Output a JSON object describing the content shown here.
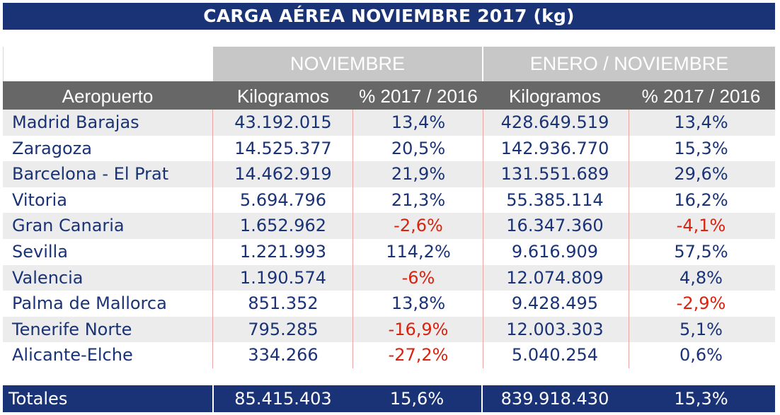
{
  "title": "CARGA AÉREA NOVIEMBRE 2017 (kg)",
  "groups": {
    "month": "NOVIEMBRE",
    "ytd": "ENERO / NOVIEMBRE"
  },
  "columns": {
    "airport": "Aeropuerto",
    "month_kg": "Kilogramos",
    "month_pct": "% 2017 / 2016",
    "ytd_kg": "Kilogramos",
    "ytd_pct": "% 2017 / 2016"
  },
  "rows": [
    {
      "airport": "Madrid Barajas",
      "month_kg": "43.192.015",
      "month_pct": "13,4%",
      "ytd_kg": "428.649.519",
      "ytd_pct": "13,4%"
    },
    {
      "airport": "Zaragoza",
      "month_kg": "14.525.377",
      "month_pct": "20,5%",
      "ytd_kg": "142.936.770",
      "ytd_pct": "15,3%"
    },
    {
      "airport": "Barcelona - El Prat",
      "month_kg": "14.462.919",
      "month_pct": "21,9%",
      "ytd_kg": "131.551.689",
      "ytd_pct": "29,6%"
    },
    {
      "airport": "Vitoria",
      "month_kg": "5.694.796",
      "month_pct": "21,3%",
      "ytd_kg": "55.385.114",
      "ytd_pct": "16,2%"
    },
    {
      "airport": "Gran Canaria",
      "month_kg": "1.652.962",
      "month_pct": "-2,6%",
      "ytd_kg": "16.347.360",
      "ytd_pct": "-4,1%"
    },
    {
      "airport": "Sevilla",
      "month_kg": "1.221.993",
      "month_pct": "114,2%",
      "ytd_kg": "9.616.909",
      "ytd_pct": "57,5%"
    },
    {
      "airport": "Valencia",
      "month_kg": "1.190.574",
      "month_pct": "-6%",
      "ytd_kg": "12.074.809",
      "ytd_pct": "4,8%"
    },
    {
      "airport": "Palma de Mallorca",
      "month_kg": "851.352",
      "month_pct": "13,8%",
      "ytd_kg": "9.428.495",
      "ytd_pct": "-2,9%"
    },
    {
      "airport": "Tenerife Norte",
      "month_kg": "795.285",
      "month_pct": "-16,9%",
      "ytd_kg": "12.003.303",
      "ytd_pct": "5,1%"
    },
    {
      "airport": "Alicante-Elche",
      "month_kg": "334.266",
      "month_pct": "-27,2%",
      "ytd_kg": "5.040.254",
      "ytd_pct": "0,6%"
    }
  ],
  "totals": {
    "label": "Totales",
    "month_kg": "85.415.403",
    "month_pct": "15,6%",
    "ytd_kg": "839.918.430",
    "ytd_pct": "15,3%"
  },
  "colors": {
    "navy": "#1a3376",
    "negative": "#d9220f",
    "header_gray": "#676767",
    "group_gray": "#c7c7c7",
    "row_shade": "#ececec"
  }
}
